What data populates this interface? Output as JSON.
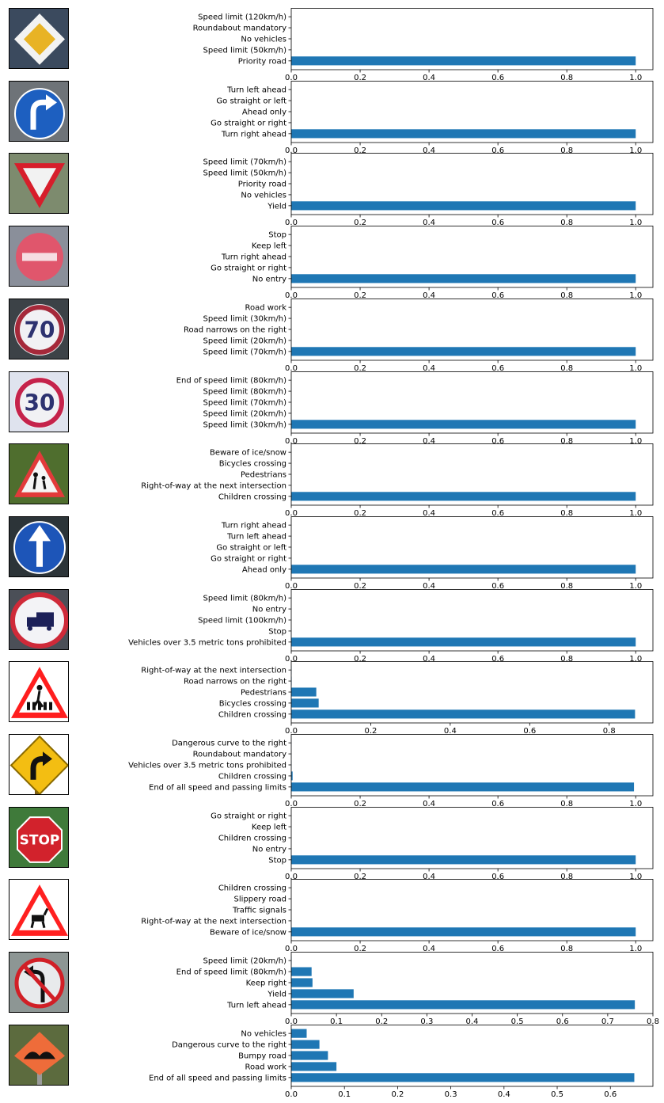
{
  "colors": {
    "bar": "#1f77b4",
    "axis": "#000000",
    "background": "#ffffff"
  },
  "chart_data": [
    {
      "type": "bar",
      "orientation": "horizontal",
      "sign_icon": "priority-road-sign",
      "categories": [
        "Priority road",
        "Speed limit (50km/h)",
        "No vehicles",
        "Roundabout mandatory",
        "Speed limit (120km/h)"
      ],
      "values": [
        1.0,
        0,
        0,
        0,
        0
      ],
      "xlim": [
        0,
        1.05
      ],
      "xticks": [
        0.0,
        0.2,
        0.4,
        0.6,
        0.8,
        1.0
      ],
      "xtick_labels": [
        "0.0",
        "0.2",
        "0.4",
        "0.6",
        "0.8",
        "1.0"
      ]
    },
    {
      "type": "bar",
      "orientation": "horizontal",
      "sign_icon": "turn-right-ahead-sign",
      "categories": [
        "Turn right ahead",
        "Go straight or right",
        "Ahead only",
        "Go straight or left",
        "Turn left ahead"
      ],
      "values": [
        1.0,
        0,
        0,
        0,
        0
      ],
      "xlim": [
        0,
        1.05
      ],
      "xticks": [
        0.0,
        0.2,
        0.4,
        0.6,
        0.8,
        1.0
      ],
      "xtick_labels": [
        "0.0",
        "0.2",
        "0.4",
        "0.6",
        "0.8",
        "1.0"
      ]
    },
    {
      "type": "bar",
      "orientation": "horizontal",
      "sign_icon": "yield-sign",
      "categories": [
        "Yield",
        "No vehicles",
        "Priority road",
        "Speed limit (50km/h)",
        "Speed limit (70km/h)"
      ],
      "values": [
        1.0,
        0,
        0,
        0,
        0
      ],
      "xlim": [
        0,
        1.05
      ],
      "xticks": [
        0.0,
        0.2,
        0.4,
        0.6,
        0.8,
        1.0
      ],
      "xtick_labels": [
        "0.0",
        "0.2",
        "0.4",
        "0.6",
        "0.8",
        "1.0"
      ]
    },
    {
      "type": "bar",
      "orientation": "horizontal",
      "sign_icon": "no-entry-sign",
      "categories": [
        "No entry",
        "Go straight or right",
        "Turn right ahead",
        "Keep left",
        "Stop"
      ],
      "values": [
        1.0,
        0,
        0,
        0,
        0
      ],
      "xlim": [
        0,
        1.05
      ],
      "xticks": [
        0.0,
        0.2,
        0.4,
        0.6,
        0.8,
        1.0
      ],
      "xtick_labels": [
        "0.0",
        "0.2",
        "0.4",
        "0.6",
        "0.8",
        "1.0"
      ]
    },
    {
      "type": "bar",
      "orientation": "horizontal",
      "sign_icon": "speed-limit-70-sign",
      "sign_text": "70",
      "categories": [
        "Speed limit (70km/h)",
        "Speed limit (20km/h)",
        "Road narrows on the right",
        "Speed limit (30km/h)",
        "Road work"
      ],
      "values": [
        1.0,
        0,
        0,
        0,
        0
      ],
      "xlim": [
        0,
        1.05
      ],
      "xticks": [
        0.0,
        0.2,
        0.4,
        0.6,
        0.8,
        1.0
      ],
      "xtick_labels": [
        "0.0",
        "0.2",
        "0.4",
        "0.6",
        "0.8",
        "1.0"
      ]
    },
    {
      "type": "bar",
      "orientation": "horizontal",
      "sign_icon": "speed-limit-30-sign",
      "sign_text": "30",
      "categories": [
        "Speed limit (30km/h)",
        "Speed limit (20km/h)",
        "Speed limit (70km/h)",
        "Speed limit (80km/h)",
        "End of speed limit (80km/h)"
      ],
      "values": [
        1.0,
        0,
        0,
        0,
        0
      ],
      "xlim": [
        0,
        1.05
      ],
      "xticks": [
        0.0,
        0.2,
        0.4,
        0.6,
        0.8,
        1.0
      ],
      "xtick_labels": [
        "0.0",
        "0.2",
        "0.4",
        "0.6",
        "0.8",
        "1.0"
      ]
    },
    {
      "type": "bar",
      "orientation": "horizontal",
      "sign_icon": "children-crossing-sign",
      "categories": [
        "Children crossing",
        "Right-of-way at the next intersection",
        "Pedestrians",
        "Bicycles crossing",
        "Beware of ice/snow"
      ],
      "values": [
        1.0,
        0,
        0,
        0,
        0
      ],
      "xlim": [
        0,
        1.05
      ],
      "xticks": [
        0.0,
        0.2,
        0.4,
        0.6,
        0.8,
        1.0
      ],
      "xtick_labels": [
        "0.0",
        "0.2",
        "0.4",
        "0.6",
        "0.8",
        "1.0"
      ]
    },
    {
      "type": "bar",
      "orientation": "horizontal",
      "sign_icon": "ahead-only-sign",
      "categories": [
        "Ahead only",
        "Go straight or right",
        "Go straight or left",
        "Turn left ahead",
        "Turn right ahead"
      ],
      "values": [
        1.0,
        0,
        0,
        0,
        0
      ],
      "xlim": [
        0,
        1.05
      ],
      "xticks": [
        0.0,
        0.2,
        0.4,
        0.6,
        0.8,
        1.0
      ],
      "xtick_labels": [
        "0.0",
        "0.2",
        "0.4",
        "0.6",
        "0.8",
        "1.0"
      ]
    },
    {
      "type": "bar",
      "orientation": "horizontal",
      "sign_icon": "truck-prohibited-sign",
      "categories": [
        "Vehicles over 3.5 metric tons prohibited",
        "Stop",
        "Speed limit (100km/h)",
        "No entry",
        "Speed limit (80km/h)"
      ],
      "values": [
        1.0,
        0,
        0,
        0,
        0
      ],
      "xlim": [
        0,
        1.05
      ],
      "xticks": [
        0.0,
        0.2,
        0.4,
        0.6,
        0.8,
        1.0
      ],
      "xtick_labels": [
        "0.0",
        "0.2",
        "0.4",
        "0.6",
        "0.8",
        "1.0"
      ]
    },
    {
      "type": "bar",
      "orientation": "horizontal",
      "sign_icon": "pedestrian-crossing-sign",
      "categories": [
        "Children crossing",
        "Bicycles crossing",
        "Pedestrians",
        "Road narrows on the right",
        "Right-of-way at the next intersection"
      ],
      "values": [
        0.865,
        0.069,
        0.063,
        0.001,
        0.0005
      ],
      "xlim": [
        0,
        0.91
      ],
      "xticks": [
        0.0,
        0.2,
        0.4,
        0.6,
        0.8
      ],
      "xtick_labels": [
        "0.0",
        "0.2",
        "0.4",
        "0.6",
        "0.8"
      ]
    },
    {
      "type": "bar",
      "orientation": "horizontal",
      "sign_icon": "curve-right-sign",
      "categories": [
        "End of all speed and passing limits",
        "Children crossing",
        "Vehicles over 3.5 metric tons prohibited",
        "Roundabout mandatory",
        "Dangerous curve to the right"
      ],
      "values": [
        0.995,
        0.004,
        0.0005,
        0.0003,
        0.0002
      ],
      "xlim": [
        0,
        1.05
      ],
      "xticks": [
        0.0,
        0.2,
        0.4,
        0.6,
        0.8,
        1.0
      ],
      "xtick_labels": [
        "0.0",
        "0.2",
        "0.4",
        "0.6",
        "0.8",
        "1.0"
      ]
    },
    {
      "type": "bar",
      "orientation": "horizontal",
      "sign_icon": "stop-sign",
      "sign_text": "STOP",
      "categories": [
        "Stop",
        "No entry",
        "Children crossing",
        "Keep left",
        "Go straight or right"
      ],
      "values": [
        1.0,
        0,
        0,
        0,
        0
      ],
      "xlim": [
        0,
        1.05
      ],
      "xticks": [
        0.0,
        0.2,
        0.4,
        0.6,
        0.8,
        1.0
      ],
      "xtick_labels": [
        "0.0",
        "0.2",
        "0.4",
        "0.6",
        "0.8",
        "1.0"
      ]
    },
    {
      "type": "bar",
      "orientation": "horizontal",
      "sign_icon": "deer-crossing-sign",
      "categories": [
        "Beware of ice/snow",
        "Right-of-way at the next intersection",
        "Traffic signals",
        "Slippery road",
        "Children crossing"
      ],
      "values": [
        1.0,
        0,
        0,
        0,
        0
      ],
      "xlim": [
        0,
        1.05
      ],
      "xticks": [
        0.0,
        0.2,
        0.4,
        0.6,
        0.8,
        1.0
      ],
      "xtick_labels": [
        "0.0",
        "0.2",
        "0.4",
        "0.6",
        "0.8",
        "1.0"
      ]
    },
    {
      "type": "bar",
      "orientation": "horizontal",
      "sign_icon": "no-left-turn-sign",
      "categories": [
        "Turn left ahead",
        "Yield",
        "Keep right",
        "End of speed limit (80km/h)",
        "Speed limit (20km/h)"
      ],
      "values": [
        0.76,
        0.138,
        0.047,
        0.045,
        0.0005
      ],
      "xlim": [
        0,
        0.8
      ],
      "xticks": [
        0.0,
        0.1,
        0.2,
        0.3,
        0.4,
        0.5,
        0.6,
        0.7,
        0.8
      ],
      "xtick_labels": [
        "0.0",
        "0.1",
        "0.2",
        "0.3",
        "0.4",
        "0.5",
        "0.6",
        "0.7",
        "0.8"
      ]
    },
    {
      "type": "bar",
      "orientation": "horizontal",
      "sign_icon": "bumpy-road-sign",
      "categories": [
        "End of all speed and passing limits",
        "Road work",
        "Bumpy road",
        "Dangerous curve to the right",
        "No vehicles"
      ],
      "values": [
        0.645,
        0.085,
        0.069,
        0.053,
        0.029
      ],
      "xlim": [
        0,
        0.68
      ],
      "xticks": [
        0.0,
        0.1,
        0.2,
        0.3,
        0.4,
        0.5,
        0.6
      ],
      "xtick_labels": [
        "0.0",
        "0.1",
        "0.2",
        "0.3",
        "0.4",
        "0.5",
        "0.6"
      ]
    }
  ]
}
